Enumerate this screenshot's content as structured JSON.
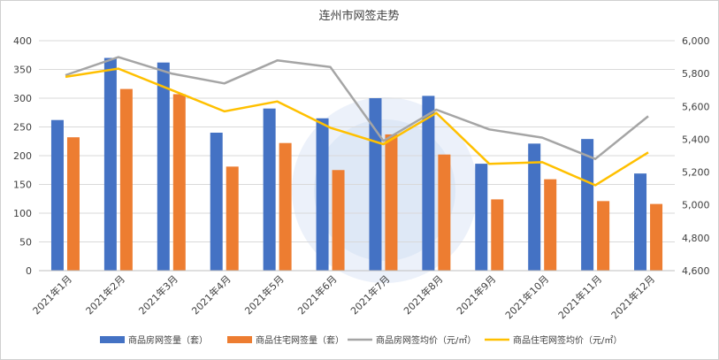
{
  "chart_data": {
    "type": "bar",
    "title": "连州市网签走势",
    "categories": [
      "2021年1月",
      "2021年2月",
      "2021年3月",
      "2021年4月",
      "2021年5月",
      "2021年6月",
      "2021年7月",
      "2021年8月",
      "2021年9月",
      "2021年10月",
      "2021年11月",
      "2021年12月"
    ],
    "series": [
      {
        "name": "商品房网签量（套）",
        "kind": "bar",
        "axis": "left",
        "color": "#4472C4",
        "values": [
          262,
          370,
          362,
          240,
          282,
          265,
          300,
          304,
          186,
          221,
          229,
          169
        ]
      },
      {
        "name": "商品住宅网签量（套）",
        "kind": "bar",
        "axis": "left",
        "color": "#ED7D31",
        "values": [
          232,
          316,
          307,
          181,
          222,
          175,
          237,
          202,
          124,
          159,
          121,
          116
        ]
      },
      {
        "name": "商品房网签均价（元/㎡）",
        "kind": "line",
        "axis": "right",
        "color": "#A5A5A5",
        "values": [
          5790,
          5900,
          5800,
          5740,
          5880,
          5840,
          5390,
          5580,
          5460,
          5410,
          5280,
          5540
        ]
      },
      {
        "name": "商品住宅网签均价（元/㎡）",
        "kind": "line",
        "axis": "right",
        "color": "#FFC000",
        "values": [
          5780,
          5830,
          5700,
          5570,
          5630,
          5470,
          5370,
          5560,
          5250,
          5260,
          5120,
          5320
        ]
      }
    ],
    "y_left": {
      "min": 0,
      "max": 400,
      "step": 50,
      "ticks": [
        "0",
        "50",
        "100",
        "150",
        "200",
        "250",
        "300",
        "350",
        "400"
      ]
    },
    "y_right": {
      "min": 4600,
      "max": 6000,
      "step": 200,
      "ticks": [
        "4,600",
        "4,800",
        "5,000",
        "5,200",
        "5,400",
        "5,600",
        "5,800",
        "6,000"
      ]
    },
    "grid": true,
    "legend_position": "bottom"
  }
}
